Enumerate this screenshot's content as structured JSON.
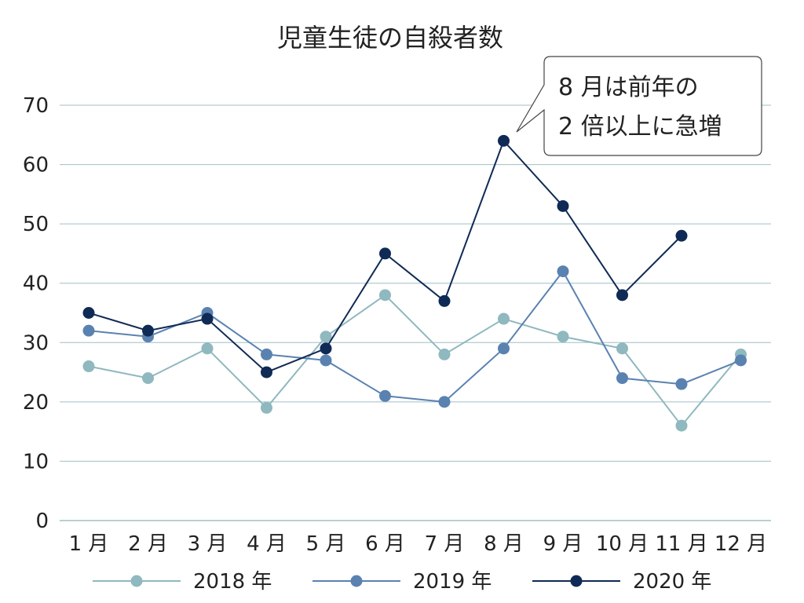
{
  "chart_data": {
    "type": "line",
    "title": "児童生徒の自殺者数",
    "categories": [
      "1 月",
      "2 月",
      "3 月",
      "4 月",
      "5 月",
      "6 月",
      "7 月",
      "8 月",
      "9 月",
      "10 月",
      "11 月",
      "12 月"
    ],
    "ylim": [
      0,
      70
    ],
    "yticks": [
      "0",
      "10",
      "20",
      "30",
      "40",
      "50",
      "60",
      "70"
    ],
    "grid": true,
    "legend_position": "bottom",
    "series": [
      {
        "name": "2018 年",
        "color": "#8fb8bf",
        "values": [
          26,
          24,
          29,
          19,
          31,
          38,
          28,
          34,
          31,
          29,
          16,
          28
        ]
      },
      {
        "name": "2019 年",
        "color": "#5a82b0",
        "values": [
          32,
          31,
          35,
          28,
          27,
          21,
          20,
          29,
          42,
          24,
          23,
          27
        ]
      },
      {
        "name": "2020 年",
        "color": "#0f2a55",
        "values": [
          35,
          32,
          34,
          25,
          29,
          45,
          37,
          64,
          53,
          38,
          48,
          null
        ]
      }
    ],
    "annotation": {
      "lines": [
        "8 月は前年の",
        "2 倍以上に急増"
      ],
      "points_to": {
        "series": "2020 年",
        "category": "8 月"
      }
    }
  }
}
